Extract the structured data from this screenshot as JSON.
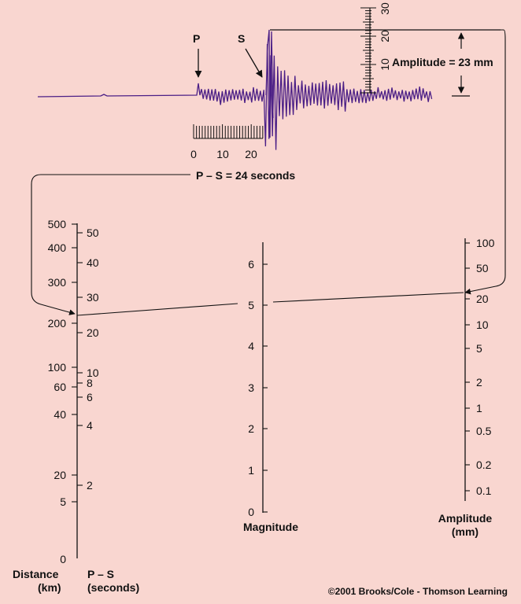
{
  "seismogram": {
    "p_label": "P",
    "s_label": "S",
    "time_ticks": [
      "0",
      "10",
      "20"
    ],
    "amp_ticks": [
      "10",
      "20",
      "30"
    ],
    "amplitude_text": "Amplitude = 23 mm",
    "ps_text": "P – S = 24 seconds",
    "trace_color": "#4b1f86"
  },
  "nomogram": {
    "distance_ticks": [
      "500",
      "400",
      "300",
      "200",
      "100",
      "60",
      "40",
      "20",
      "5",
      "0"
    ],
    "ps_ticks": [
      "50",
      "40",
      "30",
      "20",
      "10",
      "8",
      "6",
      "4",
      "2"
    ],
    "distance_label_1": "Distance",
    "distance_label_2": "(km)",
    "ps_label_1": "P – S",
    "ps_label_2": "(seconds)",
    "magnitude_ticks": [
      "6",
      "5",
      "4",
      "3",
      "2",
      "1",
      "0"
    ],
    "magnitude_label": "Magnitude",
    "amplitude_ticks": [
      "100",
      "50",
      "20",
      "10",
      "5",
      "2",
      "1",
      "0.5",
      "0.2",
      "0.1"
    ],
    "amplitude_label_1": "Amplitude",
    "amplitude_label_2": "(mm)"
  },
  "copyright": "©2001 Brooks/Cole - Thomson Learning"
}
